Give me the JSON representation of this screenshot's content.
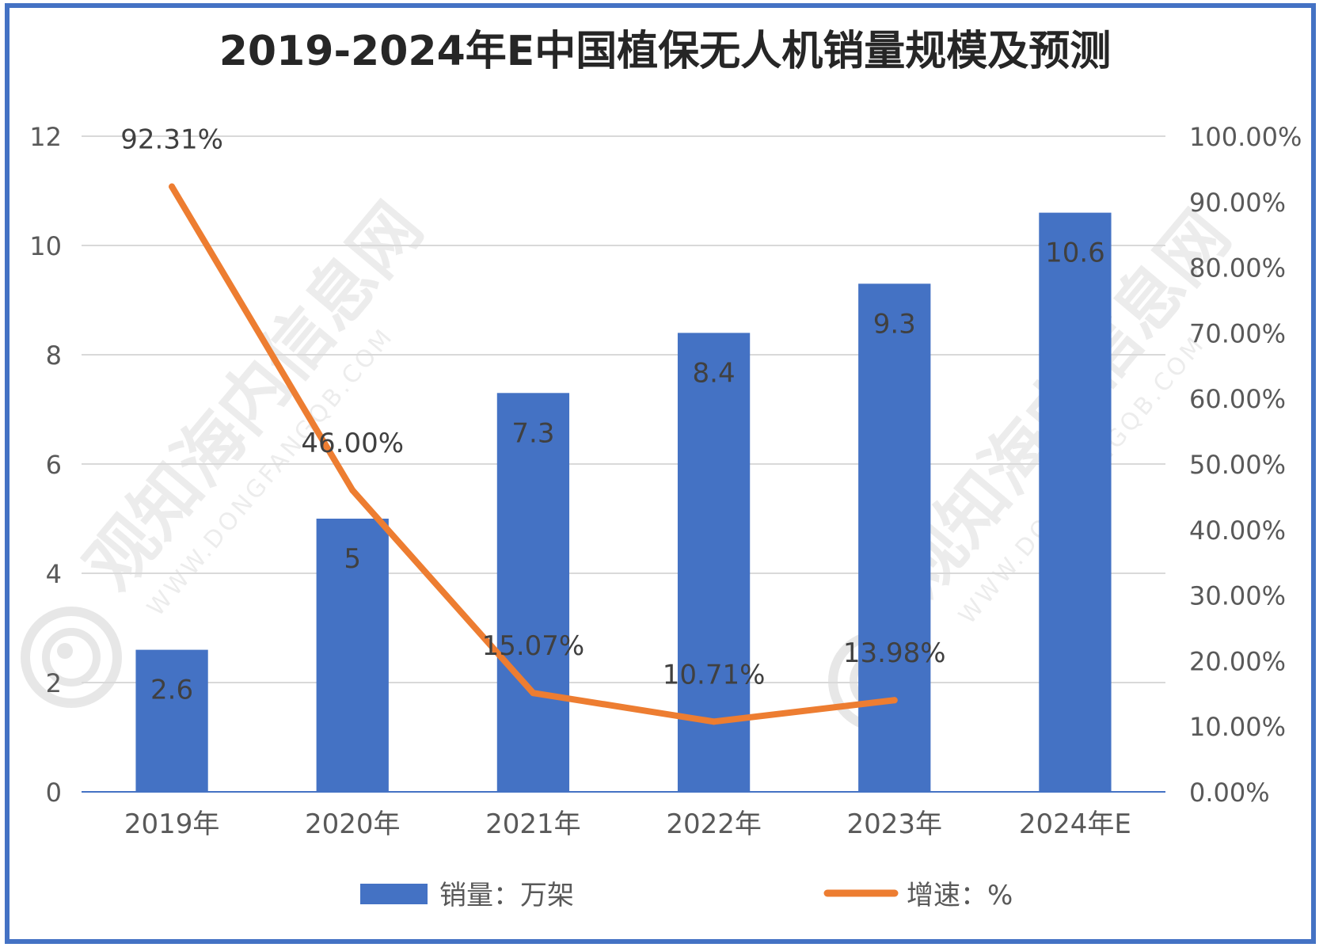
{
  "colors": {
    "frame": "#4472C4",
    "bar": "#4472C4",
    "line": "#ED7D31",
    "grid": "#D9D9D9",
    "axis_text": "#595959",
    "label_text": "#404040",
    "title_text": "#262626"
  },
  "watermark": {
    "text": "观知海内信息网",
    "subtext": "WWW.DONGFANGQB.COM"
  },
  "chart_data": {
    "type": "bar",
    "title": "2019-2024年E中国植保无人机销量规模及预测",
    "categories": [
      "2019年",
      "2020年",
      "2021年",
      "2022年",
      "2023年",
      "2024年E"
    ],
    "ylim": [
      0,
      12
    ],
    "y_ticks": [
      "0",
      "2",
      "4",
      "6",
      "8",
      "10",
      "12"
    ],
    "y2lim": [
      0,
      1
    ],
    "y2_ticks": [
      "0.00%",
      "10.00%",
      "20.00%",
      "30.00%",
      "40.00%",
      "50.00%",
      "60.00%",
      "70.00%",
      "80.00%",
      "90.00%",
      "100.00%"
    ],
    "grid": true,
    "legend_position": "bottom",
    "series": [
      {
        "name": "销量：万架",
        "type": "bar",
        "axis": "left",
        "values": [
          2.6,
          5,
          7.3,
          8.4,
          9.3,
          10.6
        ],
        "labels": [
          "2.6",
          "5",
          "7.3",
          "8.4",
          "9.3",
          "10.6"
        ]
      },
      {
        "name": "增速：%",
        "type": "line",
        "axis": "right",
        "values": [
          0.9231,
          0.46,
          0.1507,
          0.1071,
          0.1398,
          null
        ],
        "labels": [
          "92.31%",
          "46.00%",
          "15.07%",
          "10.71%",
          "13.98%",
          null
        ]
      }
    ]
  }
}
